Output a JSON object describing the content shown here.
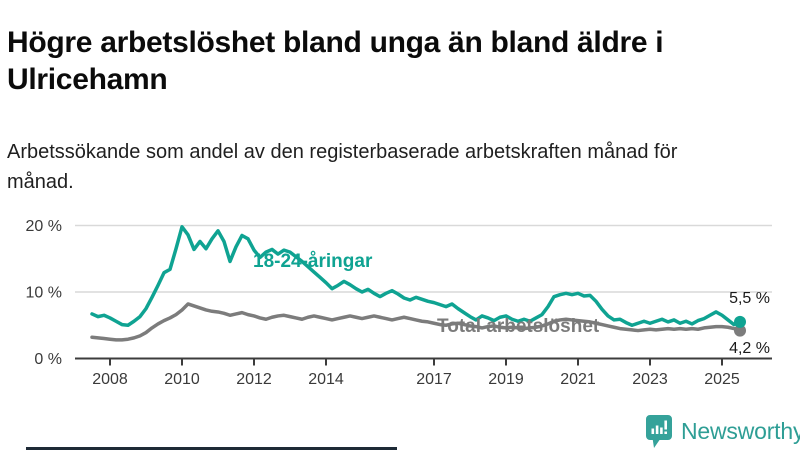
{
  "header": {
    "title": "Högre arbetslöshet bland unga än bland äldre i Ulricehamn",
    "subtitle": "Arbetssökande som andel av den registerbaserade arbetskraften månad för månad."
  },
  "chart_data": {
    "type": "line",
    "x_unit": "year (monthly series)",
    "x_start": 2007.5,
    "x_step": 0.16667,
    "x_axis": {
      "ticks": [
        {
          "value": 2008,
          "label": "2008"
        },
        {
          "value": 2010,
          "label": "2010"
        },
        {
          "value": 2012,
          "label": "2012"
        },
        {
          "value": 2014,
          "label": "2014"
        },
        {
          "value": 2017,
          "label": "2017"
        },
        {
          "value": 2019,
          "label": "2019"
        },
        {
          "value": 2021,
          "label": "2021"
        },
        {
          "value": 2023,
          "label": "2023"
        },
        {
          "value": 2025,
          "label": "2025"
        }
      ]
    },
    "y_axis": {
      "range": [
        0,
        21
      ],
      "ticks": [
        {
          "value": 0,
          "label": "0 %"
        },
        {
          "value": 10,
          "label": "10 %"
        },
        {
          "value": 20,
          "label": "20 %"
        }
      ]
    },
    "grid": "horizontal",
    "series": [
      {
        "name": "18-24-aringar",
        "label": "18-24-åringar",
        "color": "#0FA392",
        "end_value": 5.5,
        "end_value_label": "5,5 %",
        "values": [
          6.7,
          6.3,
          6.5,
          6.1,
          5.6,
          5.1,
          5.0,
          5.6,
          6.3,
          7.5,
          9.2,
          11.0,
          12.9,
          13.4,
          16.5,
          19.8,
          18.6,
          16.4,
          17.6,
          16.5,
          18.0,
          19.2,
          17.6,
          14.6,
          16.8,
          18.5,
          18.0,
          16.3,
          15.2,
          16.0,
          16.4,
          15.7,
          16.3,
          16.0,
          15.3,
          14.6,
          13.8,
          13.0,
          12.2,
          11.4,
          10.5,
          11.0,
          11.6,
          11.1,
          10.5,
          10.0,
          10.4,
          9.8,
          9.3,
          9.8,
          10.2,
          9.7,
          9.1,
          8.8,
          9.2,
          8.9,
          8.6,
          8.4,
          8.1,
          7.8,
          8.2,
          7.5,
          6.9,
          6.3,
          5.8,
          6.4,
          6.1,
          5.7,
          6.2,
          6.4,
          5.9,
          5.6,
          5.9,
          5.6,
          6.1,
          6.6,
          7.8,
          9.3,
          9.6,
          9.8,
          9.6,
          9.8,
          9.4,
          9.5,
          8.6,
          7.4,
          6.4,
          5.8,
          5.9,
          5.4,
          5.0,
          5.3,
          5.6,
          5.3,
          5.6,
          5.9,
          5.5,
          5.8,
          5.3,
          5.6,
          5.2,
          5.7,
          6.0,
          6.5,
          7.0,
          6.5,
          5.8,
          5.1,
          5.5
        ]
      },
      {
        "name": "total-arbetsloshet",
        "label": "Total arbetslöshet",
        "color": "#7C7C7C",
        "end_value": 4.2,
        "end_value_label": "4,2 %",
        "values": [
          3.2,
          3.1,
          3.0,
          2.9,
          2.8,
          2.8,
          2.9,
          3.1,
          3.4,
          3.9,
          4.6,
          5.2,
          5.7,
          6.1,
          6.6,
          7.3,
          8.2,
          7.9,
          7.6,
          7.3,
          7.1,
          7.0,
          6.8,
          6.5,
          6.7,
          6.9,
          6.6,
          6.4,
          6.1,
          5.9,
          6.2,
          6.4,
          6.5,
          6.3,
          6.1,
          5.9,
          6.2,
          6.4,
          6.2,
          6.0,
          5.8,
          6.0,
          6.2,
          6.4,
          6.2,
          6.0,
          6.2,
          6.4,
          6.2,
          6.0,
          5.8,
          6.0,
          6.2,
          6.0,
          5.8,
          5.6,
          5.5,
          5.3,
          5.1,
          5.0,
          5.2,
          5.3,
          5.1,
          4.9,
          4.8,
          4.6,
          4.8,
          4.9,
          4.7,
          4.6,
          4.7,
          4.6,
          4.5,
          4.6,
          4.7,
          4.9,
          5.2,
          5.6,
          5.8,
          5.9,
          5.8,
          5.7,
          5.6,
          5.5,
          5.3,
          5.1,
          4.9,
          4.7,
          4.5,
          4.4,
          4.3,
          4.2,
          4.3,
          4.4,
          4.3,
          4.4,
          4.5,
          4.4,
          4.5,
          4.4,
          4.5,
          4.4,
          4.6,
          4.7,
          4.8,
          4.8,
          4.7,
          4.5,
          4.2
        ]
      }
    ],
    "colors": {
      "axis": "#3C3C3C",
      "gridline": "#D9D9D9",
      "tick_text": "#3A3A3A"
    }
  },
  "footer": {
    "brand": "Newsworthy",
    "logo_icon": "bar-chart-speech-bubble-icon",
    "brand_color": "#2E9E95",
    "icon_color": "#35A29A"
  }
}
